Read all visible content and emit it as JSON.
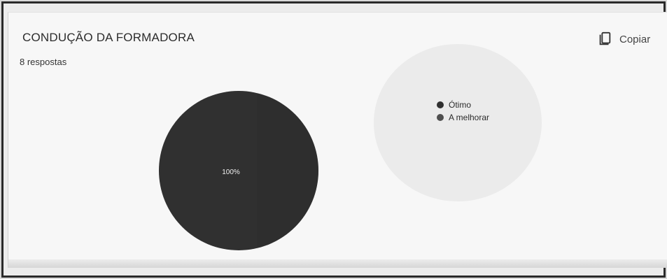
{
  "header": {
    "title": "CONDUÇÃO DA FORMADORA",
    "subtitle": "8 respostas",
    "copy_label": "Copiar"
  },
  "icons": {
    "copy": "copy-icon"
  },
  "colors": {
    "pie": "#303030",
    "legend_1": "#4a4a4a",
    "legend_2": "#4f4f4f"
  },
  "chart_data": {
    "type": "pie",
    "title": "CONDUÇÃO DA FORMADORA",
    "subtitle": "8 respostas",
    "legend_position": "right",
    "labels": [
      "Ótimo",
      "A melhorar"
    ],
    "values": [
      100,
      0
    ],
    "data_labels": [
      "100%",
      ""
    ],
    "colors": [
      "#303030",
      "#4f4f4f"
    ]
  }
}
